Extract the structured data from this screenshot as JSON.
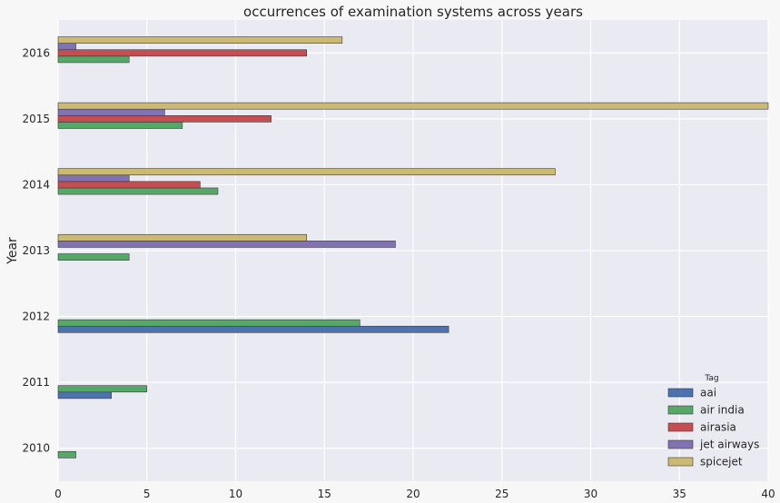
{
  "chart_data": {
    "type": "bar",
    "orientation": "horizontal",
    "title": "occurrences of examination systems across years",
    "xlabel": "",
    "ylabel": "Year",
    "categories": [
      "2010",
      "2011",
      "2012",
      "2013",
      "2014",
      "2015",
      "2016"
    ],
    "xlim": [
      0,
      40
    ],
    "xticks": [
      "0",
      "5",
      "10",
      "15",
      "20",
      "25",
      "30",
      "35",
      "40"
    ],
    "grid": true,
    "legend": {
      "title": "Tag",
      "position": "lower-right"
    },
    "series": [
      {
        "name": "aai",
        "color": "#4c72b0",
        "values": [
          0,
          3,
          22,
          0,
          0,
          0,
          0
        ]
      },
      {
        "name": "air india",
        "color": "#55a868",
        "values": [
          1,
          5,
          17,
          4,
          9,
          7,
          4
        ]
      },
      {
        "name": "airasia",
        "color": "#c44e52",
        "values": [
          0,
          0,
          0,
          0,
          8,
          12,
          14
        ]
      },
      {
        "name": "jet airways",
        "color": "#8172b2",
        "values": [
          0,
          0,
          0,
          19,
          4,
          6,
          1
        ]
      },
      {
        "name": "spicejet",
        "color": "#ccb974",
        "values": [
          0,
          0,
          0,
          14,
          28,
          40,
          16
        ]
      }
    ]
  }
}
